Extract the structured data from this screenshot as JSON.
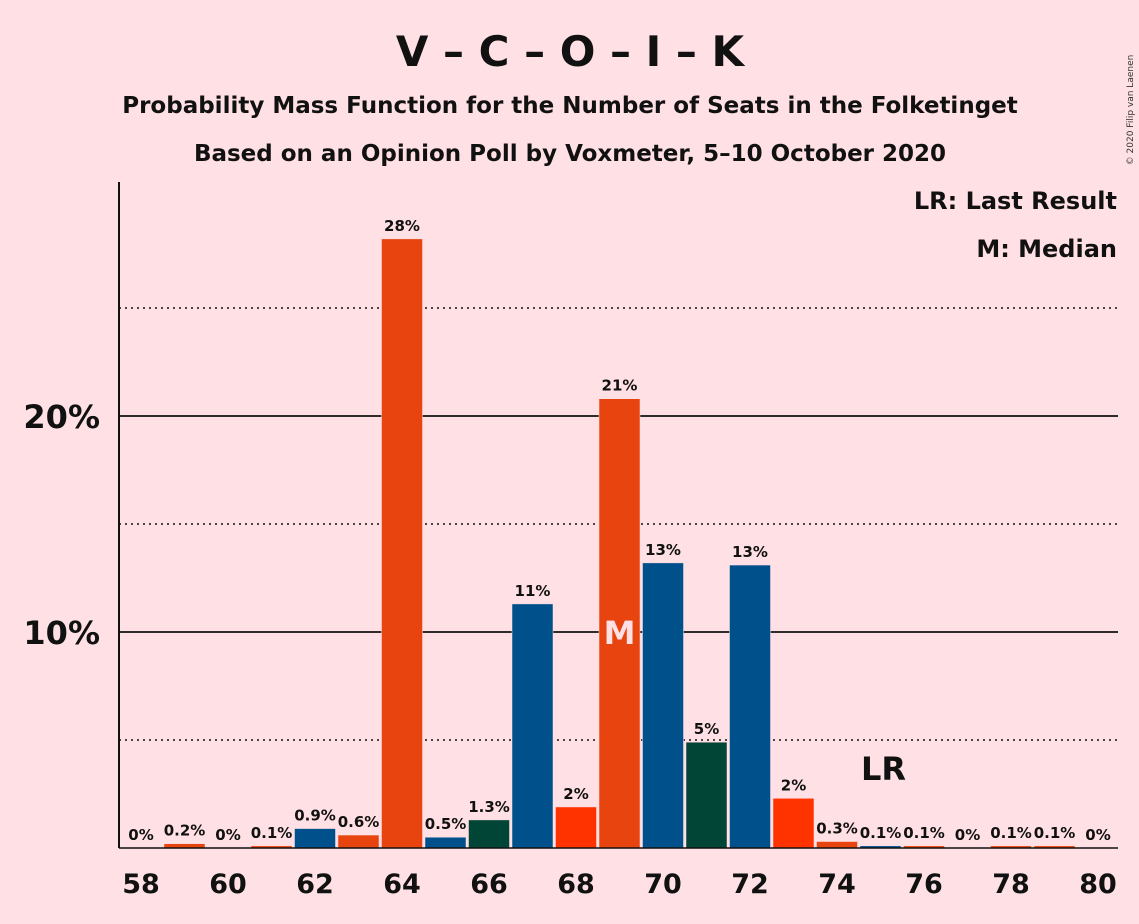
{
  "copyright": "© 2020 Filip van Laenen",
  "chart_data": {
    "type": "bar",
    "title": "V – C – O – I – K",
    "subtitle": "Probability Mass Function for the Number of Seats in the Folketinget",
    "subtitle2": "Based on an Opinion Poll by Voxmeter, 5–10 October 2020",
    "legend": [
      {
        "text": "LR: Last Result"
      },
      {
        "text": "M: Median"
      }
    ],
    "legend_position": "top-right",
    "ylim": [
      0,
      30
    ],
    "yticks": [
      {
        "value": 10,
        "label": "10%"
      },
      {
        "value": 20,
        "label": "20%"
      }
    ],
    "minor_gridlines": [
      5,
      15,
      25
    ],
    "xticks": [
      58,
      60,
      62,
      64,
      66,
      68,
      70,
      72,
      74,
      76,
      78,
      80
    ],
    "median_seat": 69,
    "median_label": "M",
    "last_result_seat": 75,
    "last_result_label": "LR",
    "bars": [
      {
        "x": 58,
        "value": 0,
        "label": "0%",
        "color": "#E84410"
      },
      {
        "x": 59,
        "value": 0.2,
        "label": "0.2%",
        "color": "#E84410"
      },
      {
        "x": 60,
        "value": 0,
        "label": "0%",
        "color": "#E84410"
      },
      {
        "x": 61,
        "value": 0.1,
        "label": "0.1%",
        "color": "#E84410"
      },
      {
        "x": 62,
        "value": 0.9,
        "label": "0.9%",
        "color": "#00508C"
      },
      {
        "x": 63,
        "value": 0.6,
        "label": "0.6%",
        "color": "#E84410"
      },
      {
        "x": 64,
        "value": 28.2,
        "label": "28%",
        "color": "#E84410"
      },
      {
        "x": 65,
        "value": 0.5,
        "label": "0.5%",
        "color": "#00508C"
      },
      {
        "x": 66,
        "value": 1.3,
        "label": "1.3%",
        "color": "#004536"
      },
      {
        "x": 67,
        "value": 11.3,
        "label": "11%",
        "color": "#00508C"
      },
      {
        "x": 68,
        "value": 1.9,
        "label": "2%",
        "color": "#FF3300"
      },
      {
        "x": 69,
        "value": 20.8,
        "label": "21%",
        "color": "#E84410"
      },
      {
        "x": 70,
        "value": 13.2,
        "label": "13%",
        "color": "#00508C"
      },
      {
        "x": 71,
        "value": 4.9,
        "label": "5%",
        "color": "#004536"
      },
      {
        "x": 72,
        "value": 13.1,
        "label": "13%",
        "color": "#00508C"
      },
      {
        "x": 73,
        "value": 2.3,
        "label": "2%",
        "color": "#FF3300"
      },
      {
        "x": 74,
        "value": 0.3,
        "label": "0.3%",
        "color": "#E84410"
      },
      {
        "x": 75,
        "value": 0.1,
        "label": "0.1%",
        "color": "#00508C"
      },
      {
        "x": 76,
        "value": 0.1,
        "label": "0.1%",
        "color": "#E84410"
      },
      {
        "x": 77,
        "value": 0,
        "label": "0%",
        "color": "#E84410"
      },
      {
        "x": 78,
        "value": 0.1,
        "label": "0.1%",
        "color": "#E84410"
      },
      {
        "x": 79,
        "value": 0.1,
        "label": "0.1%",
        "color": "#E84410"
      },
      {
        "x": 80,
        "value": 0,
        "label": "0%",
        "color": "#E84410"
      }
    ]
  }
}
